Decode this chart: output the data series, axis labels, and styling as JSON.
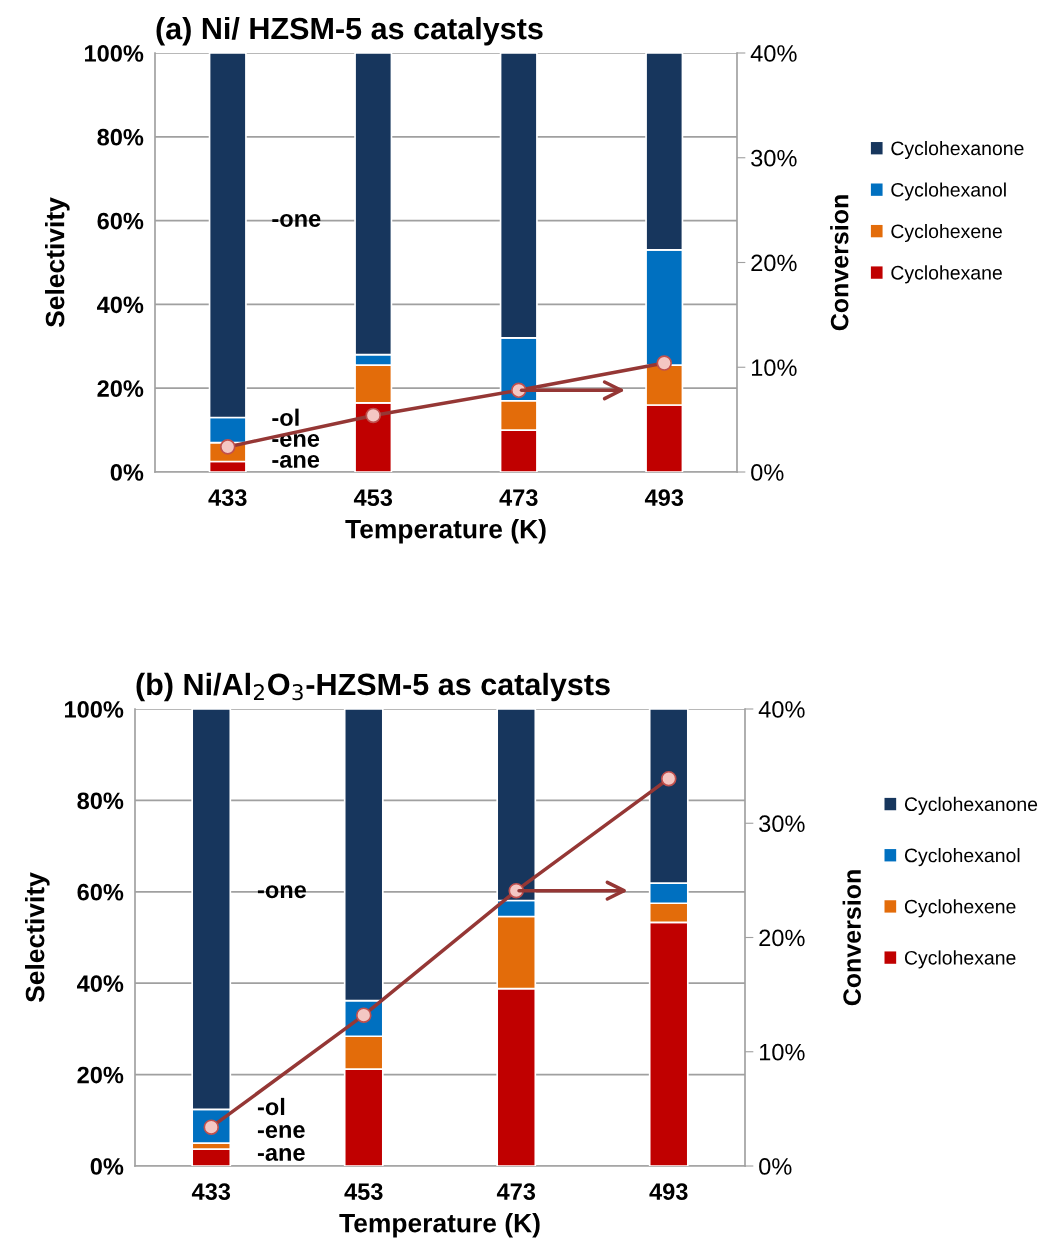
{
  "chart_data": [
    {
      "type": "bar",
      "title": "(a) Ni/ HZSM-5 as catalysts",
      "xlabel": "Temperature (K)",
      "ylabel": "Selectivity",
      "y2label": "Conversion",
      "categories": [
        "433",
        "453",
        "473",
        "493"
      ],
      "stacked": true,
      "grid": "y",
      "legend": "right",
      "ylim": [
        0,
        100
      ],
      "yticks": [
        {
          "value": 0,
          "label": "0%"
        },
        {
          "value": 20,
          "label": "20%"
        },
        {
          "value": 40,
          "label": "40%"
        },
        {
          "value": 60,
          "label": "60%"
        },
        {
          "value": 80,
          "label": "80%"
        },
        {
          "value": 100,
          "label": "100%"
        }
      ],
      "y2lim": [
        0,
        40
      ],
      "y2ticks": [
        {
          "value": 0,
          "label": "0%"
        },
        {
          "value": 10,
          "label": "10%"
        },
        {
          "value": 20,
          "label": "20%"
        },
        {
          "value": 30,
          "label": "30%"
        },
        {
          "value": 40,
          "label": "40%"
        }
      ],
      "series": [
        {
          "name": "Cyclohexane",
          "color": "#c00000",
          "values": [
            2.5,
            16.5,
            10,
            16
          ]
        },
        {
          "name": "Cyclohexene",
          "color": "#e36c0a",
          "values": [
            4.5,
            9,
            7,
            9.5
          ]
        },
        {
          "name": "Cyclohexanol",
          "color": "#0070c0",
          "values": [
            6,
            2.5,
            15,
            27.5
          ]
        },
        {
          "name": "Cyclohexanone",
          "color": "#17365d",
          "values": [
            87,
            72,
            68,
            47
          ]
        },
        {
          "type": "line",
          "axis": "y2",
          "color": "#953735",
          "marker": "circle",
          "values": [
            2.4,
            5.4,
            7.8,
            10.4
          ]
        }
      ],
      "annotations": [
        "-one",
        "-ol",
        "-ene",
        "-ane"
      ]
    },
    {
      "type": "bar",
      "title": "(b) Ni/Al$_{2}$O$_{3}$-HZSM-5 as catalysts",
      "xlabel": "Temperature (K)",
      "ylabel": "Selectivity",
      "y2label": "Conversion",
      "categories": [
        "433",
        "453",
        "473",
        "493"
      ],
      "stacked": true,
      "grid": "y",
      "legend": "right",
      "ylim": [
        0,
        100
      ],
      "yticks": [
        {
          "value": 0,
          "label": "0%"
        },
        {
          "value": 20,
          "label": "20%"
        },
        {
          "value": 40,
          "label": "40%"
        },
        {
          "value": 60,
          "label": "60%"
        },
        {
          "value": 80,
          "label": "80%"
        },
        {
          "value": 100,
          "label": "100%"
        }
      ],
      "y2lim": [
        0,
        40
      ],
      "y2ticks": [
        {
          "value": 0,
          "label": "0%"
        },
        {
          "value": 10,
          "label": "10%"
        },
        {
          "value": 20,
          "label": "20%"
        },
        {
          "value": 30,
          "label": "30%"
        },
        {
          "value": 40,
          "label": "40%"
        }
      ],
      "series": [
        {
          "name": "Cyclohexane",
          "color": "#c00000",
          "values": [
            3.7,
            21.2,
            38.8,
            53.3
          ]
        },
        {
          "name": "Cyclohexene",
          "color": "#e36c0a",
          "values": [
            1.3,
            7.2,
            15.8,
            4.2
          ]
        },
        {
          "name": "Cyclohexanol",
          "color": "#0070c0",
          "values": [
            7.4,
            7.8,
            3.5,
            4.4
          ]
        },
        {
          "name": "Cyclohexanone",
          "color": "#17365d",
          "values": [
            87.6,
            63.8,
            41.9,
            38.1
          ]
        },
        {
          "type": "line",
          "axis": "y2",
          "color": "#953735",
          "marker": "circle",
          "values": [
            3.4,
            13.2,
            24.1,
            33.9
          ]
        }
      ],
      "annotations": [
        "-one",
        "-ol",
        "-ene",
        "-ane"
      ]
    }
  ]
}
